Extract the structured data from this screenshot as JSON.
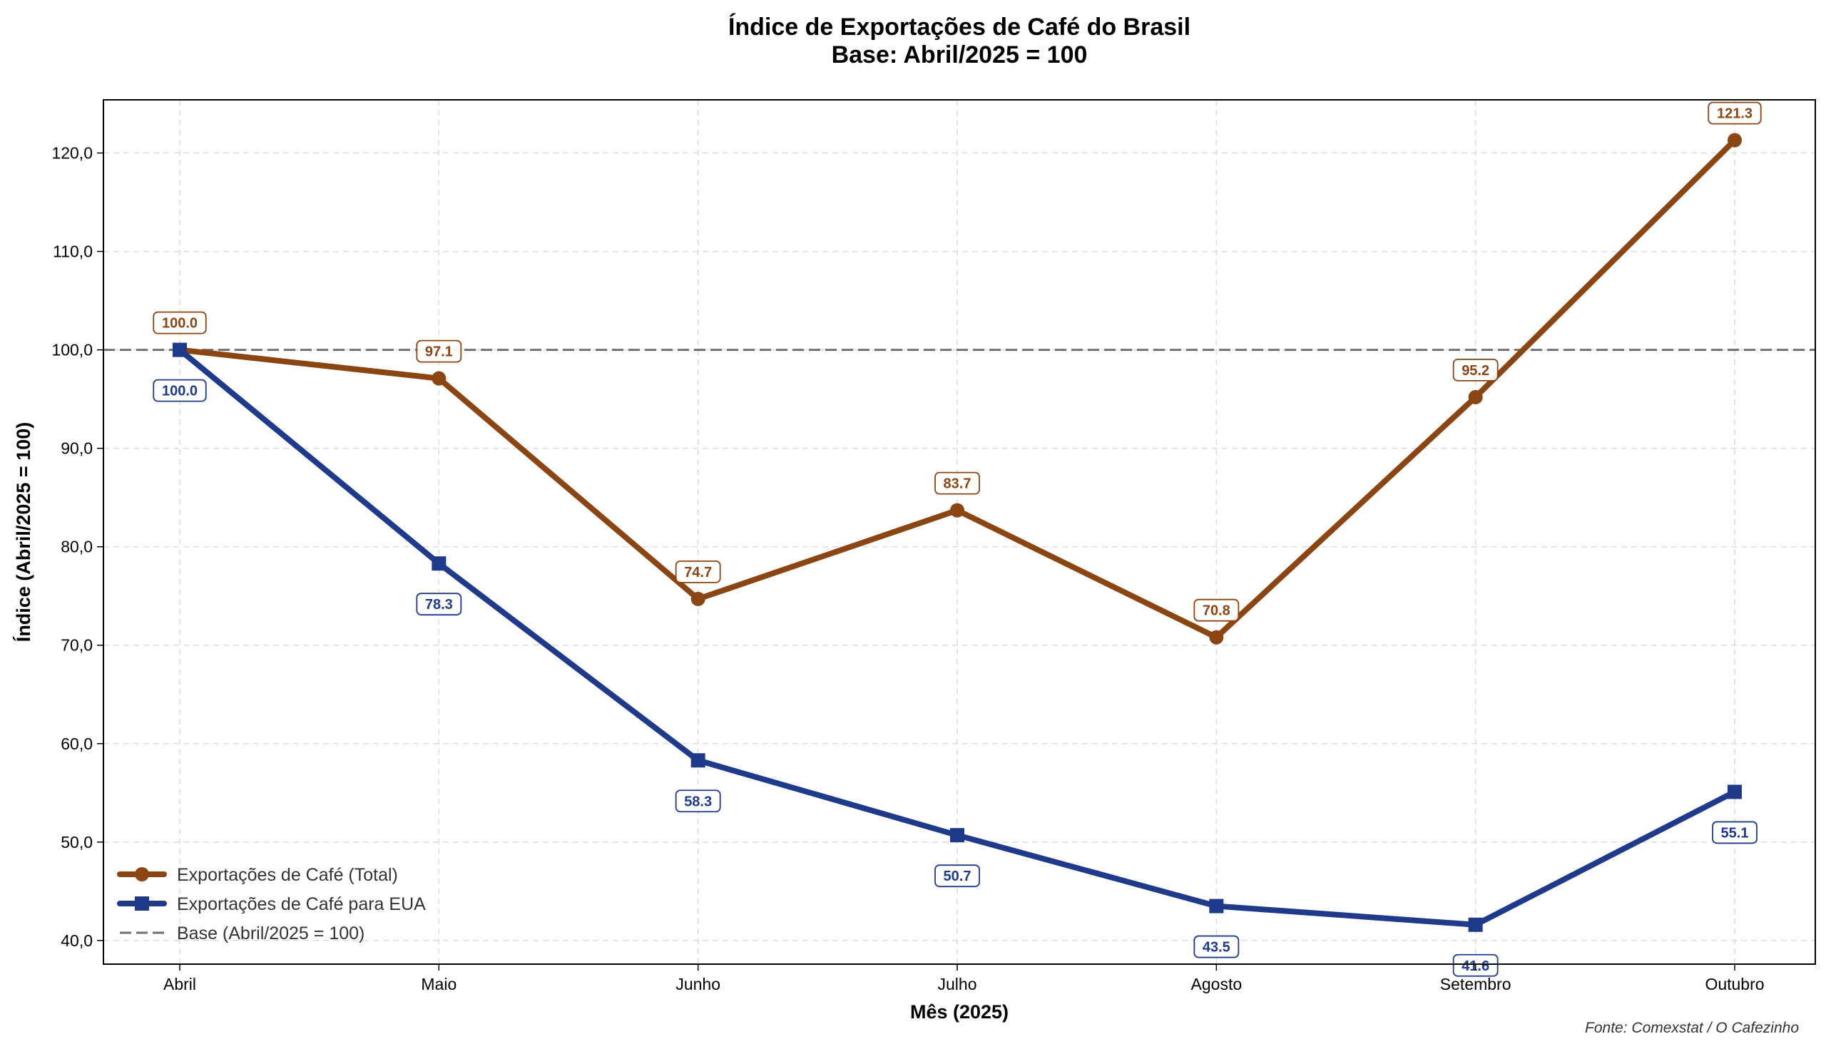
{
  "chart_data": {
    "type": "line",
    "title": "Índice de Exportações de Café do Brasil",
    "subtitle": "Base: Abril/2025 = 100",
    "xlabel": "Mês (2025)",
    "ylabel": "Índice (Abril/2025 = 100)",
    "categories": [
      "Abril",
      "Maio",
      "Junho",
      "Julho",
      "Agosto",
      "Setembro",
      "Outubro"
    ],
    "y_ticks": [
      40,
      50,
      60,
      70,
      80,
      90,
      100,
      110,
      120
    ],
    "y_tick_labels": [
      "40,0",
      "50,0",
      "60,0",
      "70,0",
      "80,0",
      "90,0",
      "100,0",
      "110,0",
      "120,0"
    ],
    "ylim": [
      37.6,
      125.4
    ],
    "grid": true,
    "legend_position": "bottom-left",
    "series": [
      {
        "name": "Exportações de Café (Total)",
        "values": [
          100.0,
          97.1,
          74.7,
          83.7,
          70.8,
          95.2,
          121.3
        ],
        "labels": [
          "100.0",
          "97.1",
          "74.7",
          "83.7",
          "70.8",
          "95.2",
          "121.3"
        ],
        "color": "#8B4513",
        "marker": "circle",
        "label_position": "above"
      },
      {
        "name": "Exportações de Café para EUA",
        "values": [
          100.0,
          78.3,
          58.3,
          50.7,
          43.5,
          41.6,
          55.1
        ],
        "labels": [
          "100.0",
          "78.3",
          "58.3",
          "50.7",
          "43.5",
          "41.6",
          "55.1"
        ],
        "color": "#1F3A8A",
        "marker": "square",
        "label_position": "below"
      }
    ],
    "reference_line": {
      "name": "Base (Abril/2025 = 100)",
      "value": 100,
      "color": "#707070",
      "style": "dashed"
    },
    "source": "Fonte: Comexstat / O Cafezinho"
  }
}
